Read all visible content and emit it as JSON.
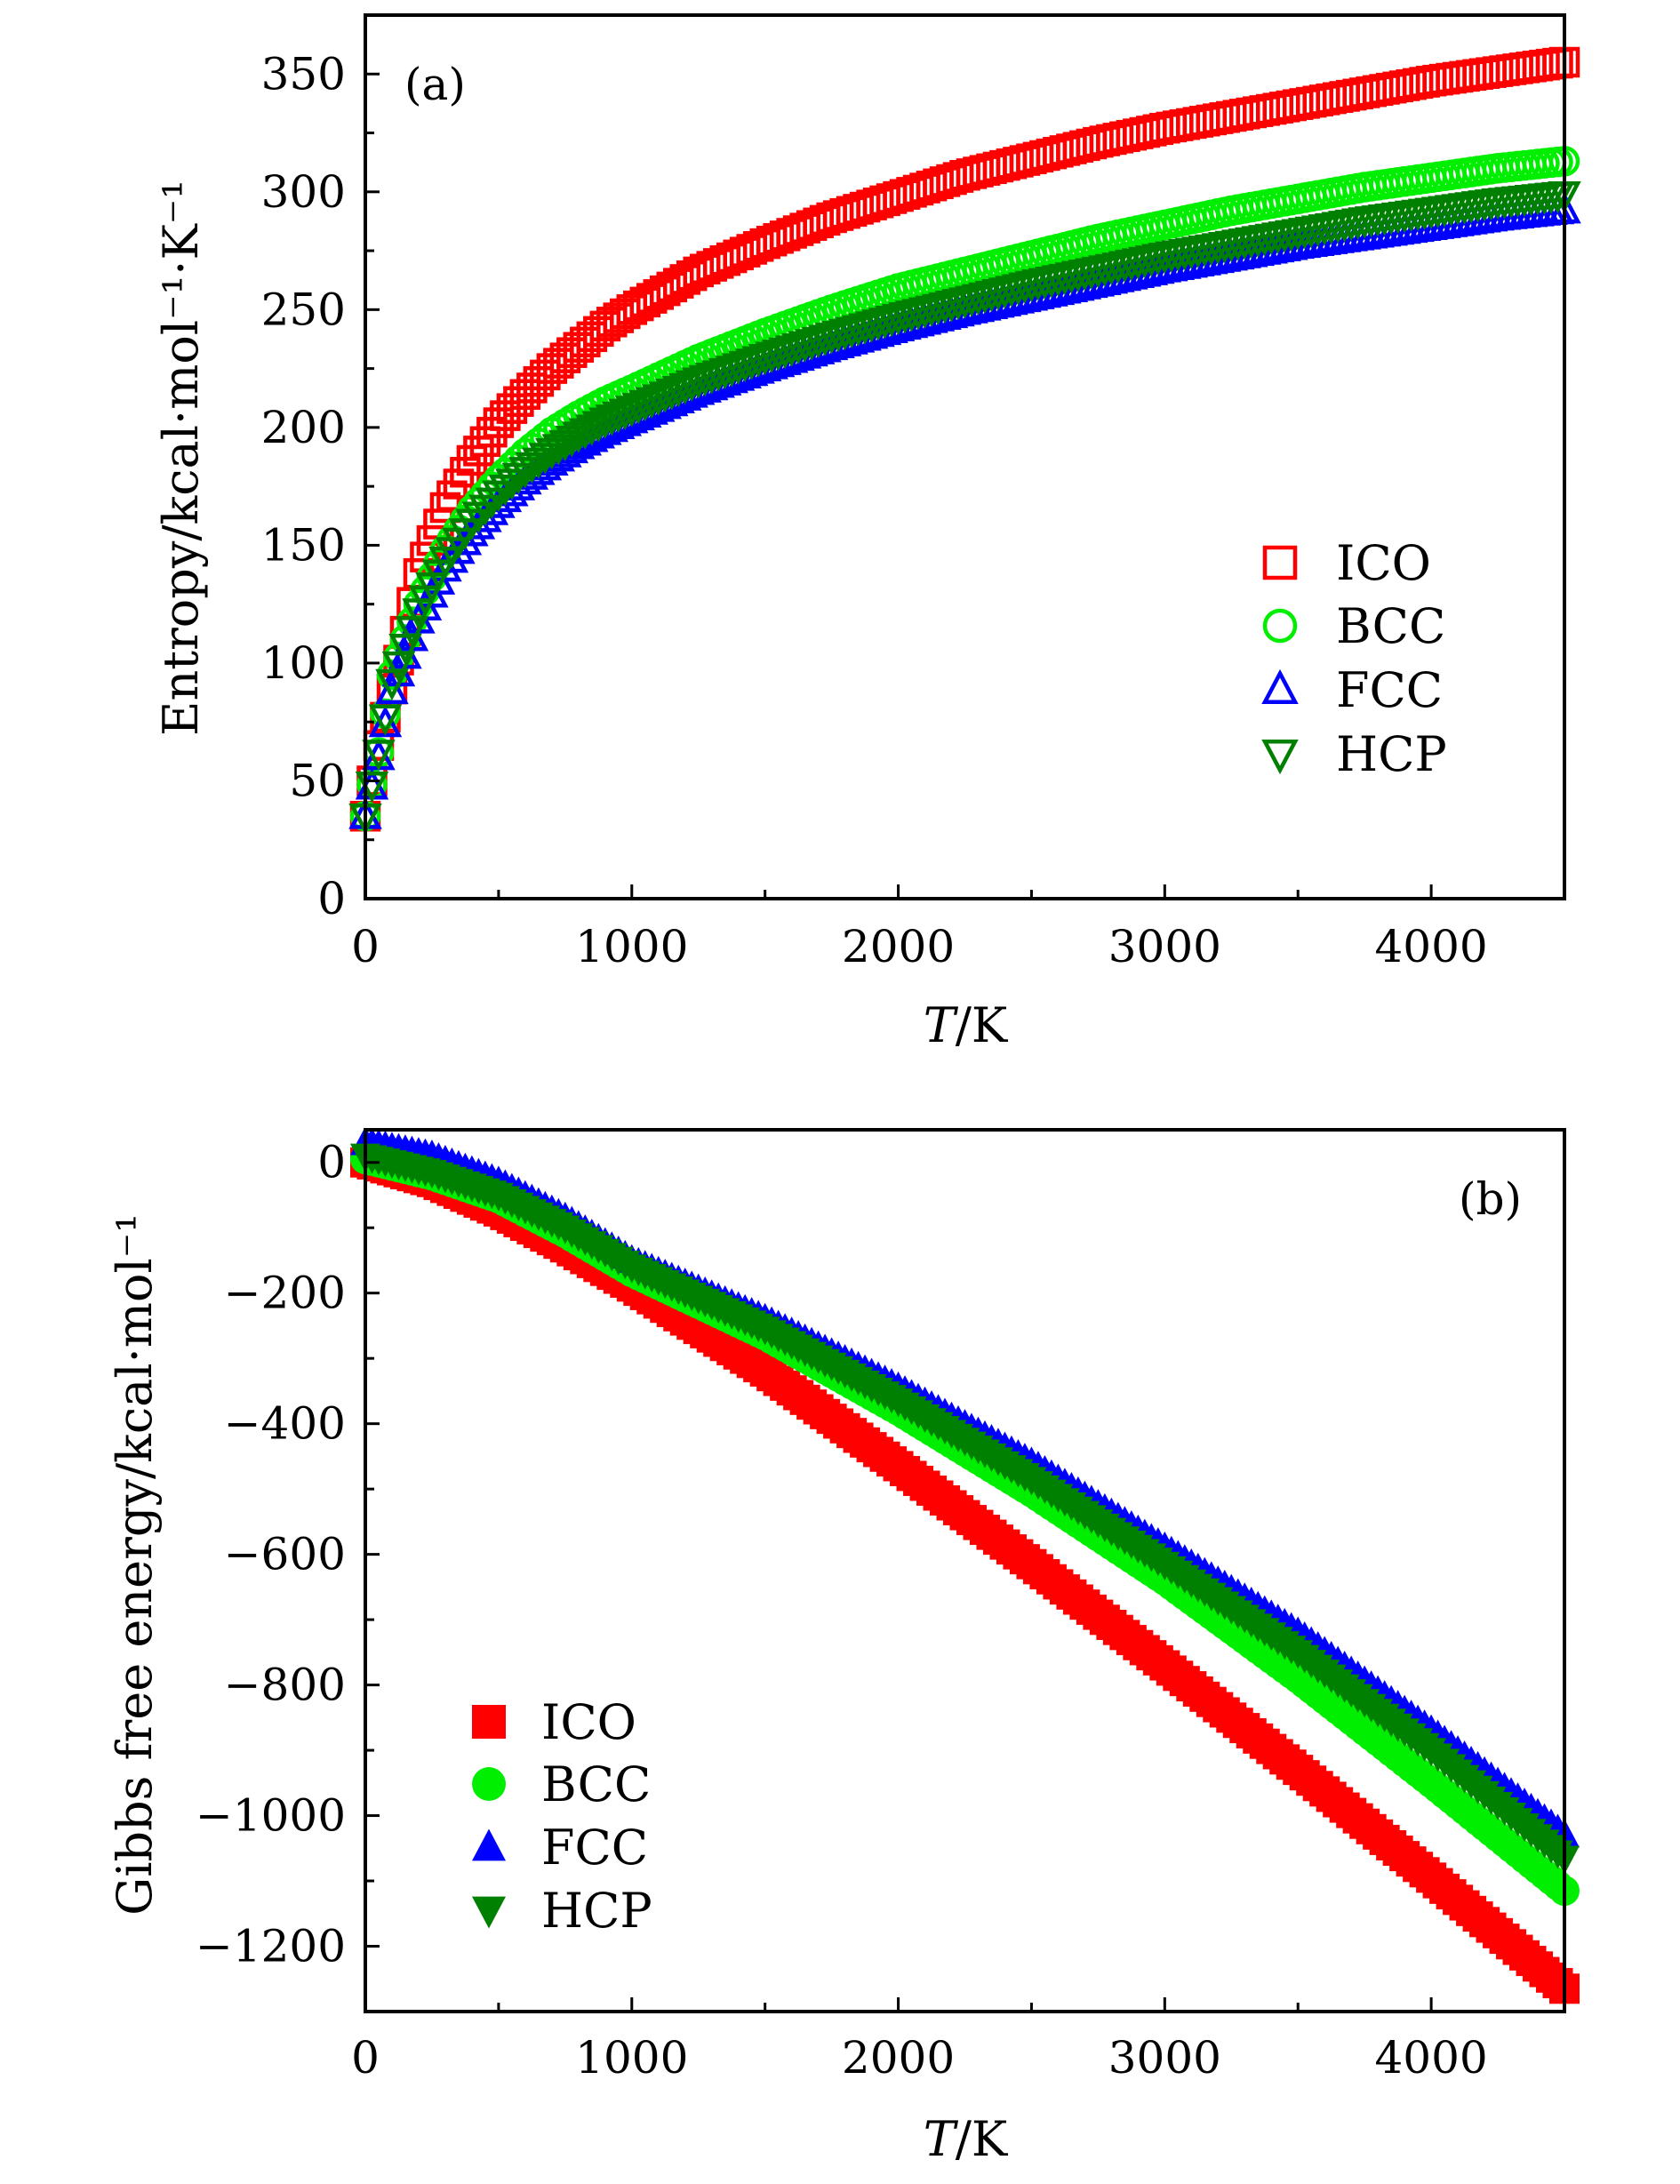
{
  "chart_data": [
    {
      "type": "scatter",
      "panel_label": "(a)",
      "xlabel_italic": "T",
      "xlabel_rest": "/K",
      "ylabel": "Entropy/kcal·mol⁻¹·K⁻¹",
      "xlim": [
        0,
        4500
      ],
      "ylim": [
        0,
        375
      ],
      "xticks": [
        0,
        1000,
        2000,
        3000,
        4000
      ],
      "xtick_labels": [
        "0",
        "1000",
        "2000",
        "3000",
        "4000"
      ],
      "yticks": [
        0,
        50,
        100,
        150,
        200,
        250,
        300,
        350
      ],
      "ytick_labels": [
        "0",
        "50",
        "100",
        "150",
        "200",
        "250",
        "300",
        "350"
      ],
      "marker_fill": "open",
      "legend_position": "center-right",
      "x": [
        0,
        50,
        100,
        200,
        300,
        400,
        500,
        600,
        700,
        800,
        900,
        1000,
        1250,
        1500,
        1750,
        2000,
        2250,
        2500,
        2750,
        3000,
        3250,
        3500,
        3750,
        4000,
        4250,
        4500
      ],
      "series": [
        {
          "name": "ICO",
          "color": "#ff0000",
          "marker": "square",
          "values": [
            35,
            65,
            89,
            138,
            166,
            186,
            202,
            214,
            225,
            234,
            243,
            250,
            266,
            278,
            289,
            298,
            307,
            314,
            321,
            327,
            332,
            337,
            342,
            347,
            351,
            355
          ]
        },
        {
          "name": "BCC",
          "color": "#00ee00",
          "marker": "circle",
          "values": [
            35,
            62,
            95,
            125,
            148,
            165,
            178,
            189,
            198,
            205,
            211,
            216,
            229,
            240,
            250,
            259,
            266,
            273,
            280,
            286,
            292,
            297,
            302,
            306,
            310,
            313
          ]
        },
        {
          "name": "FCC",
          "color": "#0000ff",
          "marker": "triangle-up",
          "values": [
            35,
            60,
            88,
            118,
            140,
            155,
            167,
            177,
            185,
            192,
            198,
            203,
            215,
            225,
            234,
            242,
            249,
            255,
            261,
            267,
            272,
            277,
            281,
            285,
            289,
            292
          ]
        },
        {
          "name": "HCP",
          "color": "#008000",
          "marker": "triangle-down",
          "values": [
            35,
            62,
            92,
            122,
            144,
            160,
            172,
            182,
            190,
            197,
            203,
            208,
            220,
            230,
            239,
            247,
            254,
            261,
            267,
            273,
            278,
            283,
            288,
            292,
            296,
            299
          ]
        }
      ]
    },
    {
      "type": "scatter",
      "panel_label": "(b)",
      "xlabel_italic": "T",
      "xlabel_rest": "/K",
      "ylabel": "Gibbs free energy/kcal·mol⁻¹",
      "xlim": [
        0,
        4500
      ],
      "ylim": [
        -1300,
        50
      ],
      "xticks": [
        0,
        1000,
        2000,
        3000,
        4000
      ],
      "xtick_labels": [
        "0",
        "1000",
        "2000",
        "3000",
        "4000"
      ],
      "yticks": [
        0,
        -200,
        -400,
        -600,
        -800,
        -1000,
        -1200
      ],
      "ytick_labels": [
        "0",
        "−200",
        "−400",
        "−600",
        "−800",
        "−1000",
        "−1200"
      ],
      "marker_fill": "filled",
      "legend_position": "lower-left",
      "x": [
        0,
        250,
        500,
        750,
        1000,
        1500,
        2000,
        2500,
        3000,
        3500,
        4000,
        4500
      ],
      "series": [
        {
          "name": "ICO",
          "color": "#ff0000",
          "marker": "square",
          "values": [
            0,
            -30,
            -75,
            -130,
            -190,
            -320,
            -465,
            -615,
            -770,
            -930,
            -1095,
            -1265
          ]
        },
        {
          "name": "BCC",
          "color": "#00ee00",
          "marker": "circle",
          "values": [
            5,
            -20,
            -55,
            -108,
            -168,
            -265,
            -380,
            -505,
            -640,
            -790,
            -950,
            -1115
          ]
        },
        {
          "name": "FCC",
          "color": "#0000ff",
          "marker": "triangle-up",
          "values": [
            30,
            10,
            -30,
            -85,
            -150,
            -240,
            -345,
            -460,
            -590,
            -720,
            -870,
            -1030
          ]
        },
        {
          "name": "HCP",
          "color": "#008000",
          "marker": "triangle-down",
          "values": [
            10,
            -15,
            -50,
            -100,
            -160,
            -255,
            -365,
            -485,
            -615,
            -750,
            -900,
            -1065
          ]
        }
      ]
    }
  ]
}
